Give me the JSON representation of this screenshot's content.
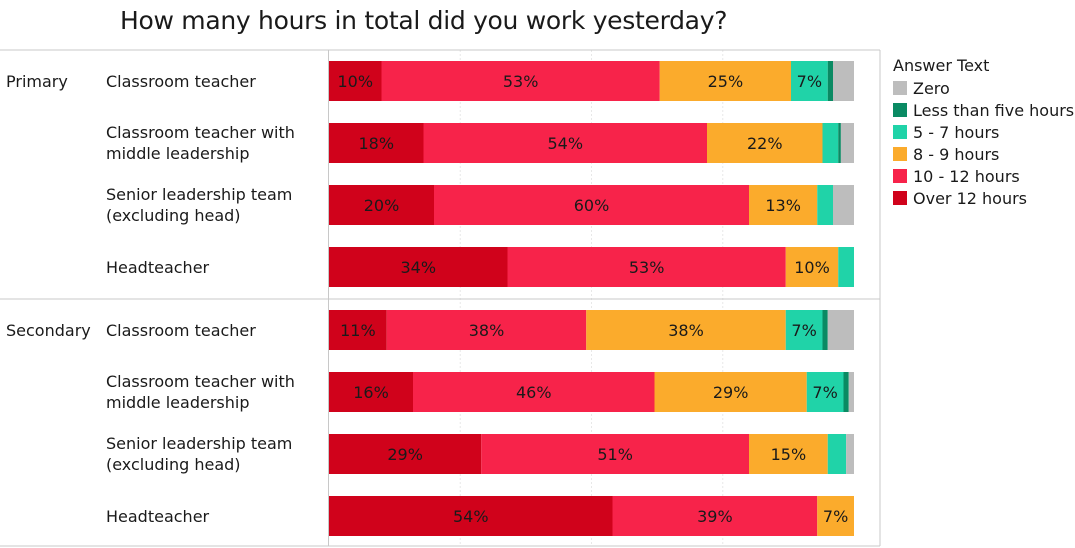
{
  "chart_data": {
    "type": "bar",
    "orientation": "horizontal",
    "stacked": "percent",
    "title": "How many hours in total did you work yesterday?",
    "legend": {
      "title": "Answer Text",
      "position": "right",
      "items": [
        "Zero",
        "Less than five hours",
        "5 - 7 hours",
        "8 - 9 hours",
        "10 - 12 hours",
        "Over 12 hours"
      ]
    },
    "colors": {
      "Over 12 hours": "#d0021b",
      "10 - 12 hours": "#f7234a",
      "8 - 9 hours": "#fbab2c",
      "5 - 7 hours": "#20d3a8",
      "Less than five hours": "#0a8a63",
      "Zero": "#bdbdbd"
    },
    "stack_order": [
      "Over 12 hours",
      "10 - 12 hours",
      "8 - 9 hours",
      "5 - 7 hours",
      "Less than five hours",
      "Zero"
    ],
    "groups": [
      {
        "name": "Primary",
        "rows": [
          {
            "label": [
              "Classroom teacher"
            ],
            "values": [
              10,
              53,
              25,
              7,
              1,
              4
            ],
            "labels": [
              "10%",
              "53%",
              "25%",
              "7%",
              "",
              ""
            ]
          },
          {
            "label": [
              "Classroom teacher with",
              "middle leadership"
            ],
            "values": [
              18,
              54,
              22,
              3,
              0.5,
              2.5
            ],
            "labels": [
              "18%",
              "54%",
              "22%",
              "",
              "",
              ""
            ]
          },
          {
            "label": [
              "Senior leadership team",
              "(excluding head)"
            ],
            "values": [
              20,
              60,
              13,
              3,
              0,
              4
            ],
            "labels": [
              "20%",
              "60%",
              "13%",
              "",
              "",
              ""
            ]
          },
          {
            "label": [
              "Headteacher"
            ],
            "values": [
              34,
              53,
              10,
              3,
              0,
              0
            ],
            "labels": [
              "34%",
              "53%",
              "10%",
              "",
              "",
              ""
            ]
          }
        ]
      },
      {
        "name": "Secondary",
        "rows": [
          {
            "label": [
              "Classroom teacher"
            ],
            "values": [
              11,
              38,
              38,
              7,
              1,
              5
            ],
            "labels": [
              "11%",
              "38%",
              "38%",
              "7%",
              "",
              ""
            ]
          },
          {
            "label": [
              "Classroom teacher with",
              "middle leadership"
            ],
            "values": [
              16,
              46,
              29,
              7,
              1,
              1
            ],
            "labels": [
              "16%",
              "46%",
              "29%",
              "7%",
              "",
              ""
            ]
          },
          {
            "label": [
              "Senior leadership team",
              "(excluding head)"
            ],
            "values": [
              29,
              51,
              15,
              3.5,
              0,
              1.5
            ],
            "labels": [
              "29%",
              "51%",
              "15%",
              "",
              "",
              ""
            ]
          },
          {
            "label": [
              "Headteacher"
            ],
            "values": [
              54,
              39,
              7,
              0,
              0,
              0
            ],
            "labels": [
              "54%",
              "39%",
              "7%",
              "",
              "",
              ""
            ]
          }
        ]
      }
    ],
    "xlim": [
      0,
      100
    ],
    "grid": true
  }
}
